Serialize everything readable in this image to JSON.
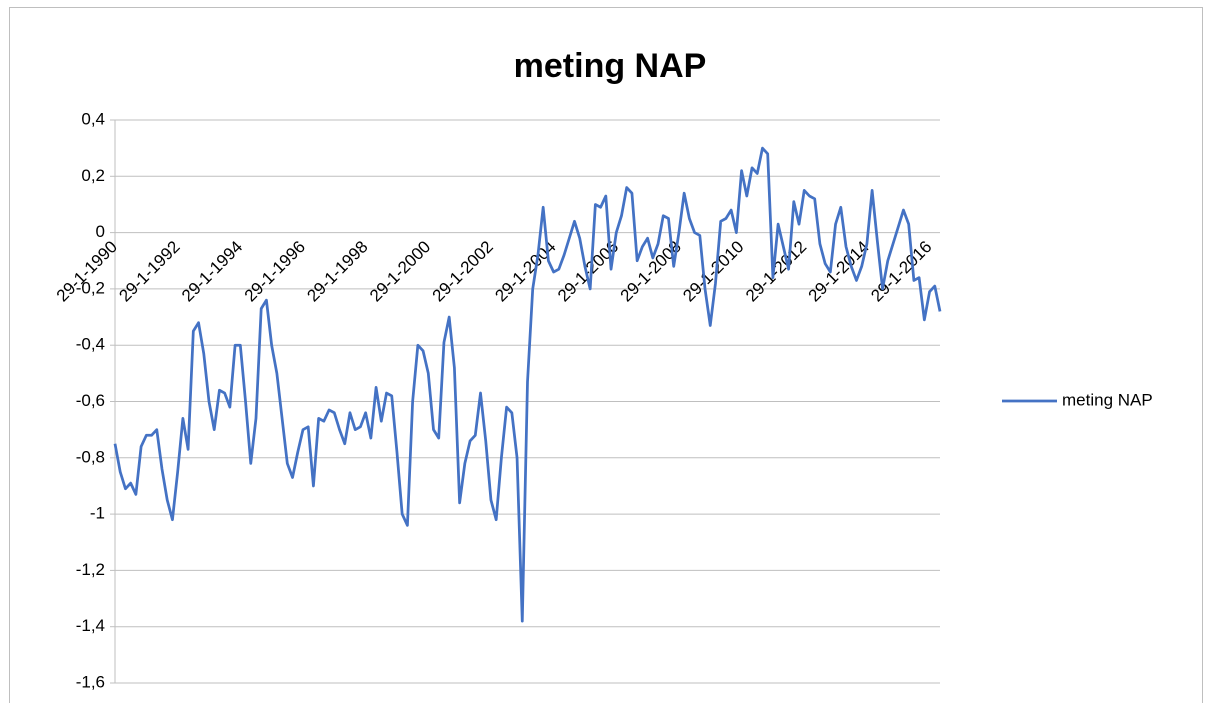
{
  "chart_data": {
    "type": "line",
    "title": "meting NAP",
    "categories": [
      "29-1-1990",
      null,
      null,
      null,
      null,
      null,
      null,
      null,
      null,
      null,
      null,
      null,
      "29-1-1992",
      null,
      null,
      null,
      null,
      null,
      null,
      null,
      null,
      null,
      null,
      null,
      "29-1-1994",
      null,
      null,
      null,
      null,
      null,
      null,
      null,
      null,
      null,
      null,
      null,
      "29-1-1996",
      null,
      null,
      null,
      null,
      null,
      null,
      null,
      null,
      null,
      null,
      null,
      "29-1-1998",
      null,
      null,
      null,
      null,
      null,
      null,
      null,
      null,
      null,
      null,
      null,
      "29-1-2000",
      null,
      null,
      null,
      null,
      null,
      null,
      null,
      null,
      null,
      null,
      null,
      "29-1-2002",
      null,
      null,
      null,
      null,
      null,
      null,
      null,
      null,
      null,
      null,
      null,
      "29-1-2004",
      null,
      null,
      null,
      null,
      null,
      null,
      null,
      null,
      null,
      null,
      null,
      "29-1-2006",
      null,
      null,
      null,
      null,
      null,
      null,
      null,
      null,
      null,
      null,
      null,
      "29-1-2008",
      null,
      null,
      null,
      null,
      null,
      null,
      null,
      null,
      null,
      null,
      null,
      "29-1-2010",
      null,
      null,
      null,
      null,
      null,
      null,
      null,
      null,
      null,
      null,
      null,
      "29-1-2012",
      null,
      null,
      null,
      null,
      null,
      null,
      null,
      null,
      null,
      null,
      null,
      "29-1-2014",
      null,
      null,
      null,
      null,
      null,
      null,
      null,
      null,
      null,
      null,
      null,
      "29-1-2016",
      null,
      null
    ],
    "series": [
      {
        "name": "meting NAP",
        "color": "#4472c4",
        "values": [
          -0.75,
          -0.85,
          -0.91,
          -0.89,
          -0.93,
          -0.76,
          -0.72,
          -0.72,
          -0.7,
          -0.84,
          -0.95,
          -1.02,
          -0.85,
          -0.66,
          -0.77,
          -0.35,
          -0.32,
          -0.43,
          -0.6,
          -0.7,
          -0.56,
          -0.57,
          -0.62,
          -0.4,
          -0.4,
          -0.6,
          -0.82,
          -0.66,
          -0.27,
          -0.24,
          -0.4,
          -0.5,
          -0.66,
          -0.82,
          -0.87,
          -0.78,
          -0.7,
          -0.69,
          -0.9,
          -0.66,
          -0.67,
          -0.63,
          -0.64,
          -0.7,
          -0.75,
          -0.64,
          -0.7,
          -0.69,
          -0.64,
          -0.73,
          -0.55,
          -0.67,
          -0.57,
          -0.58,
          -0.78,
          -1.0,
          -1.04,
          -0.6,
          -0.4,
          -0.42,
          -0.5,
          -0.7,
          -0.73,
          -0.39,
          -0.3,
          -0.48,
          -0.96,
          -0.82,
          -0.74,
          -0.72,
          -0.57,
          -0.74,
          -0.95,
          -1.02,
          -0.8,
          -0.62,
          -0.64,
          -0.8,
          -1.38,
          -0.53,
          -0.2,
          -0.08,
          0.09,
          -0.1,
          -0.14,
          -0.13,
          -0.08,
          -0.02,
          0.04,
          -0.02,
          -0.12,
          -0.2,
          0.1,
          0.09,
          0.13,
          -0.13,
          0.0,
          0.06,
          0.16,
          0.14,
          -0.1,
          -0.05,
          -0.02,
          -0.09,
          -0.04,
          0.06,
          0.05,
          -0.12,
          0.0,
          0.14,
          0.05,
          0.0,
          -0.01,
          -0.2,
          -0.33,
          -0.18,
          0.04,
          0.05,
          0.08,
          0.0,
          0.22,
          0.13,
          0.23,
          0.21,
          0.3,
          0.28,
          -0.16,
          0.03,
          -0.05,
          -0.13,
          0.11,
          0.03,
          0.15,
          0.13,
          0.12,
          -0.04,
          -0.11,
          -0.14,
          0.03,
          0.09,
          -0.05,
          -0.12,
          -0.17,
          -0.12,
          -0.04,
          0.15,
          -0.03,
          -0.2,
          -0.1,
          -0.04,
          0.02,
          0.08,
          0.03,
          -0.17,
          -0.16,
          -0.31,
          -0.21,
          -0.19,
          -0.28
        ]
      }
    ],
    "ylim": [
      -1.6,
      0.4
    ],
    "yticks": [
      {
        "value": -1.6,
        "label": "-1,6"
      },
      {
        "value": -1.4,
        "label": "-1,4"
      },
      {
        "value": -1.2,
        "label": "-1,2"
      },
      {
        "value": -1,
        "label": "-1"
      },
      {
        "value": -0.8,
        "label": "-0,8"
      },
      {
        "value": -0.6,
        "label": "-0,6"
      },
      {
        "value": -0.4,
        "label": "-0,4"
      },
      {
        "value": -0.2,
        "label": "-0,2"
      },
      0,
      {
        "value": 0.2,
        "label": "0,2"
      },
      {
        "value": 0.4,
        "label": "0,4"
      }
    ],
    "grid": true,
    "legend": "right"
  }
}
